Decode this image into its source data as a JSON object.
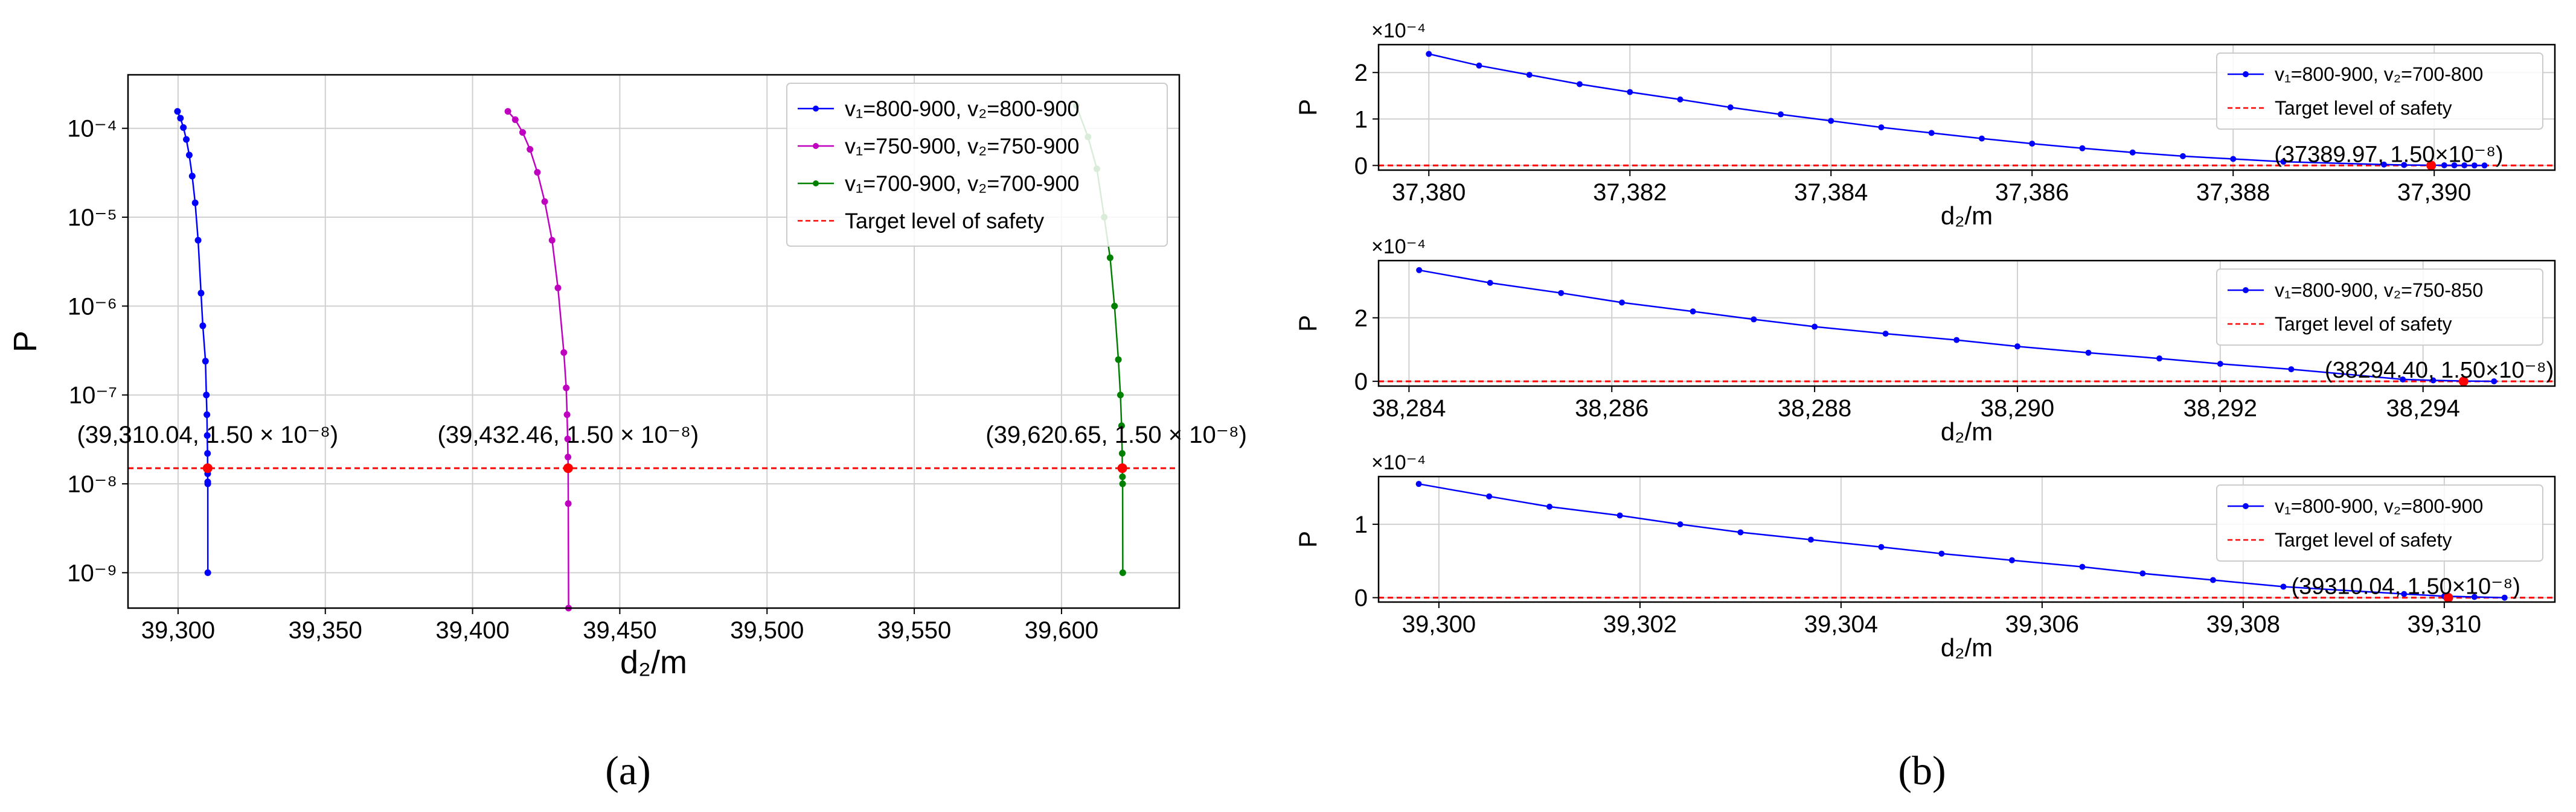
{
  "figure": {
    "caption_a": "(a)",
    "caption_b": "(b)"
  },
  "colors": {
    "blue": "#0000ff",
    "magenta": "#bf00bf",
    "green": "#008000",
    "target": "#ff0000",
    "grid": "#d0d0d0"
  },
  "chart_data": [
    {
      "id": "panel-a",
      "type": "line",
      "title": "",
      "xlabel": "d₂/m",
      "ylabel": "P",
      "yscale": "log",
      "xlim": [
        39283,
        39640
      ],
      "ylim": [
        4e-10,
        0.0004
      ],
      "xticks": [
        39300,
        39350,
        39400,
        39450,
        39500,
        39550,
        39600
      ],
      "xtick_labels": [
        "39,300",
        "39,350",
        "39,400",
        "39,450",
        "39,500",
        "39,550",
        "39,600"
      ],
      "yticks": [
        1e-09,
        1e-08,
        1e-07,
        1e-06,
        1e-05,
        0.0001
      ],
      "ytick_labels": [
        "10⁻⁹",
        "10⁻⁸",
        "10⁻⁷",
        "10⁻⁶",
        "10⁻⁵",
        "10⁻⁴"
      ],
      "grid": true,
      "legend_position": "top-right",
      "series": [
        {
          "name": "v₁=800-900, v₂=800-900",
          "color": "#0000ff",
          "x": [
            39299.8,
            39300.8,
            39301.8,
            39302.8,
            39303.8,
            39304.8,
            39305.8,
            39306.8,
            39307.8,
            39308.4,
            39309.3,
            39309.6,
            39309.8,
            39309.9,
            39310.0,
            39310.04,
            39310.05,
            39310.07,
            39310.08,
            39310.1
          ],
          "y": [
            0.000155,
            0.00013,
            0.000102,
            7.5e-05,
            5e-05,
            2.9e-05,
            1.45e-05,
            5.5e-06,
            1.4e-06,
            6e-07,
            2.4e-07,
            1e-07,
            6e-08,
            3.5e-08,
            2.2e-08,
            1.5e-08,
            1.3e-08,
            1.05e-08,
            1e-08,
            1e-09
          ]
        },
        {
          "name": "v₁=750-900, v₂=750-900",
          "color": "#bf00bf",
          "x": [
            39412.0,
            39414.5,
            39417.0,
            39419.5,
            39422.0,
            39424.5,
            39427.0,
            39429.0,
            39431.0,
            39431.8,
            39432.1,
            39432.3,
            39432.4,
            39432.46,
            39432.5,
            39432.6
          ],
          "y": [
            0.000155,
            0.000125,
            9e-05,
            5.8e-05,
            3.2e-05,
            1.5e-05,
            5.5e-06,
            1.6e-06,
            3e-07,
            1.2e-07,
            6e-08,
            3.2e-08,
            2e-08,
            1.5e-08,
            6e-09,
            4e-10
          ]
        },
        {
          "name": "v₁=700-900, v₂=700-900",
          "color": "#008000",
          "x": [
            39605.0,
            39609.0,
            39612.0,
            39614.5,
            39616.5,
            39618.0,
            39619.3,
            39620.0,
            39620.4,
            39620.6,
            39620.65,
            39620.7,
            39620.75,
            39620.8
          ],
          "y": [
            0.00018,
            8e-05,
            3.5e-05,
            1e-05,
            3.5e-06,
            1e-06,
            2.5e-07,
            1e-07,
            4.5e-08,
            2.2e-08,
            1.5e-08,
            1.2e-08,
            1e-08,
            1e-09
          ]
        }
      ],
      "target": {
        "name": "Target level of safety",
        "value": 1.5e-08,
        "color": "#ff0000"
      },
      "annotations": [
        {
          "text": "(39,310.04, 1.50 × 10⁻⁸)",
          "x": 39310.04,
          "y": 1.5e-08
        },
        {
          "text": "(39,432.46, 1.50 × 10⁻⁸)",
          "x": 39432.46,
          "y": 1.5e-08
        },
        {
          "text": "(39,620.65, 1.50 × 10⁻⁸)",
          "x": 39620.65,
          "y": 1.5e-08
        }
      ]
    },
    {
      "id": "panel-b1",
      "type": "line",
      "title": "",
      "xlabel": "d₂/m",
      "ylabel": "P",
      "yscale": "linear",
      "scale_label": "×10⁻⁴",
      "xlim": [
        37379.5,
        37391.2
      ],
      "ylim": [
        -0.1,
        2.6
      ],
      "xticks": [
        37380,
        37382,
        37384,
        37386,
        37388,
        37390
      ],
      "xtick_labels": [
        "37,380",
        "37,382",
        "37,384",
        "37,386",
        "37,388",
        "37,390"
      ],
      "yticks": [
        0,
        1,
        2
      ],
      "ytick_labels": [
        "0",
        "1",
        "2"
      ],
      "grid": true,
      "legend_position": "top-right",
      "series": [
        {
          "name": "v₁=800-900, v₂=700-800",
          "color": "#0000ff",
          "x": [
            37380.0,
            37380.5,
            37381.0,
            37381.5,
            37382.0,
            37382.5,
            37383.0,
            37383.5,
            37384.0,
            37384.5,
            37385.0,
            37385.5,
            37386.0,
            37386.5,
            37387.0,
            37387.5,
            37388.0,
            37388.5,
            37389.5,
            37389.7,
            37389.97,
            37390.1,
            37390.2,
            37390.3,
            37390.4,
            37390.5
          ],
          "y": [
            2.4,
            2.15,
            1.95,
            1.75,
            1.58,
            1.42,
            1.25,
            1.1,
            0.96,
            0.82,
            0.7,
            0.58,
            0.47,
            0.37,
            0.28,
            0.2,
            0.14,
            0.08,
            0.02,
            0.01,
            0.005,
            0.004,
            0.003,
            0.002,
            0.001,
            0.0
          ]
        }
      ],
      "target": {
        "name": "Target level of safety",
        "value": 0.0,
        "color": "#ff0000"
      },
      "annotations": [
        {
          "text": "(37389.97, 1.50×10⁻⁸)",
          "x": 37389.97,
          "y": 0.0
        }
      ]
    },
    {
      "id": "panel-b2",
      "type": "line",
      "title": "",
      "xlabel": "d₂/m",
      "ylabel": "P",
      "yscale": "linear",
      "scale_label": "×10⁻⁴",
      "xlim": [
        38283.7,
        38295.3
      ],
      "ylim": [
        -0.15,
        3.8
      ],
      "xticks": [
        38284,
        38286,
        38288,
        38290,
        38292,
        38294
      ],
      "xtick_labels": [
        "38,284",
        "38,286",
        "38,288",
        "38,290",
        "38,292",
        "38,294"
      ],
      "yticks": [
        0,
        2
      ],
      "ytick_labels": [
        "0",
        "2"
      ],
      "grid": true,
      "legend_position": "top-right",
      "series": [
        {
          "name": "v₁=800-900, v₂=750-850",
          "color": "#0000ff",
          "x": [
            38284.1,
            38284.8,
            38285.5,
            38286.1,
            38286.8,
            38287.4,
            38288.0,
            38288.7,
            38289.4,
            38290.0,
            38290.7,
            38291.4,
            38292.0,
            38292.7,
            38293.8,
            38294.1,
            38294.4,
            38294.7
          ],
          "y": [
            3.5,
            3.1,
            2.78,
            2.48,
            2.2,
            1.95,
            1.72,
            1.5,
            1.3,
            1.1,
            0.9,
            0.72,
            0.55,
            0.38,
            0.06,
            0.03,
            0.01,
            0.0
          ]
        }
      ],
      "target": {
        "name": "Target level of safety",
        "value": 0.0,
        "color": "#ff0000"
      },
      "annotations": [
        {
          "text": "(38294.40, 1.50×10⁻⁸)",
          "x": 38294.4,
          "y": 0.0
        }
      ]
    },
    {
      "id": "panel-b3",
      "type": "line",
      "title": "",
      "xlabel": "d₂/m",
      "ylabel": "P",
      "yscale": "linear",
      "scale_label": "×10⁻⁴",
      "xlim": [
        39299.4,
        39311.1
      ],
      "ylim": [
        -0.06,
        1.65
      ],
      "xticks": [
        39300,
        39302,
        39304,
        39306,
        39308,
        39310
      ],
      "xtick_labels": [
        "39,300",
        "39,302",
        "39,304",
        "39,306",
        "39,308",
        "39,310"
      ],
      "yticks": [
        0,
        1
      ],
      "ytick_labels": [
        "0",
        "1"
      ],
      "grid": true,
      "legend_position": "top-right",
      "series": [
        {
          "name": "v₁=800-900, v₂=800-900",
          "color": "#0000ff",
          "x": [
            39299.8,
            39300.5,
            39301.1,
            39301.8,
            39302.4,
            39303.0,
            39303.7,
            39304.4,
            39305.0,
            39305.7,
            39306.4,
            39307.0,
            39307.7,
            39308.4,
            39309.6,
            39310.0,
            39310.3,
            39310.6
          ],
          "y": [
            1.55,
            1.38,
            1.24,
            1.12,
            1.0,
            0.89,
            0.79,
            0.69,
            0.6,
            0.51,
            0.42,
            0.33,
            0.24,
            0.15,
            0.05,
            0.02,
            0.01,
            0.0
          ]
        }
      ],
      "target": {
        "name": "Target level of safety",
        "value": 0.0,
        "color": "#ff0000"
      },
      "annotations": [
        {
          "text": "(39310.04, 1.50×10⁻⁸)",
          "x": 39310.04,
          "y": 0.0
        }
      ]
    }
  ]
}
